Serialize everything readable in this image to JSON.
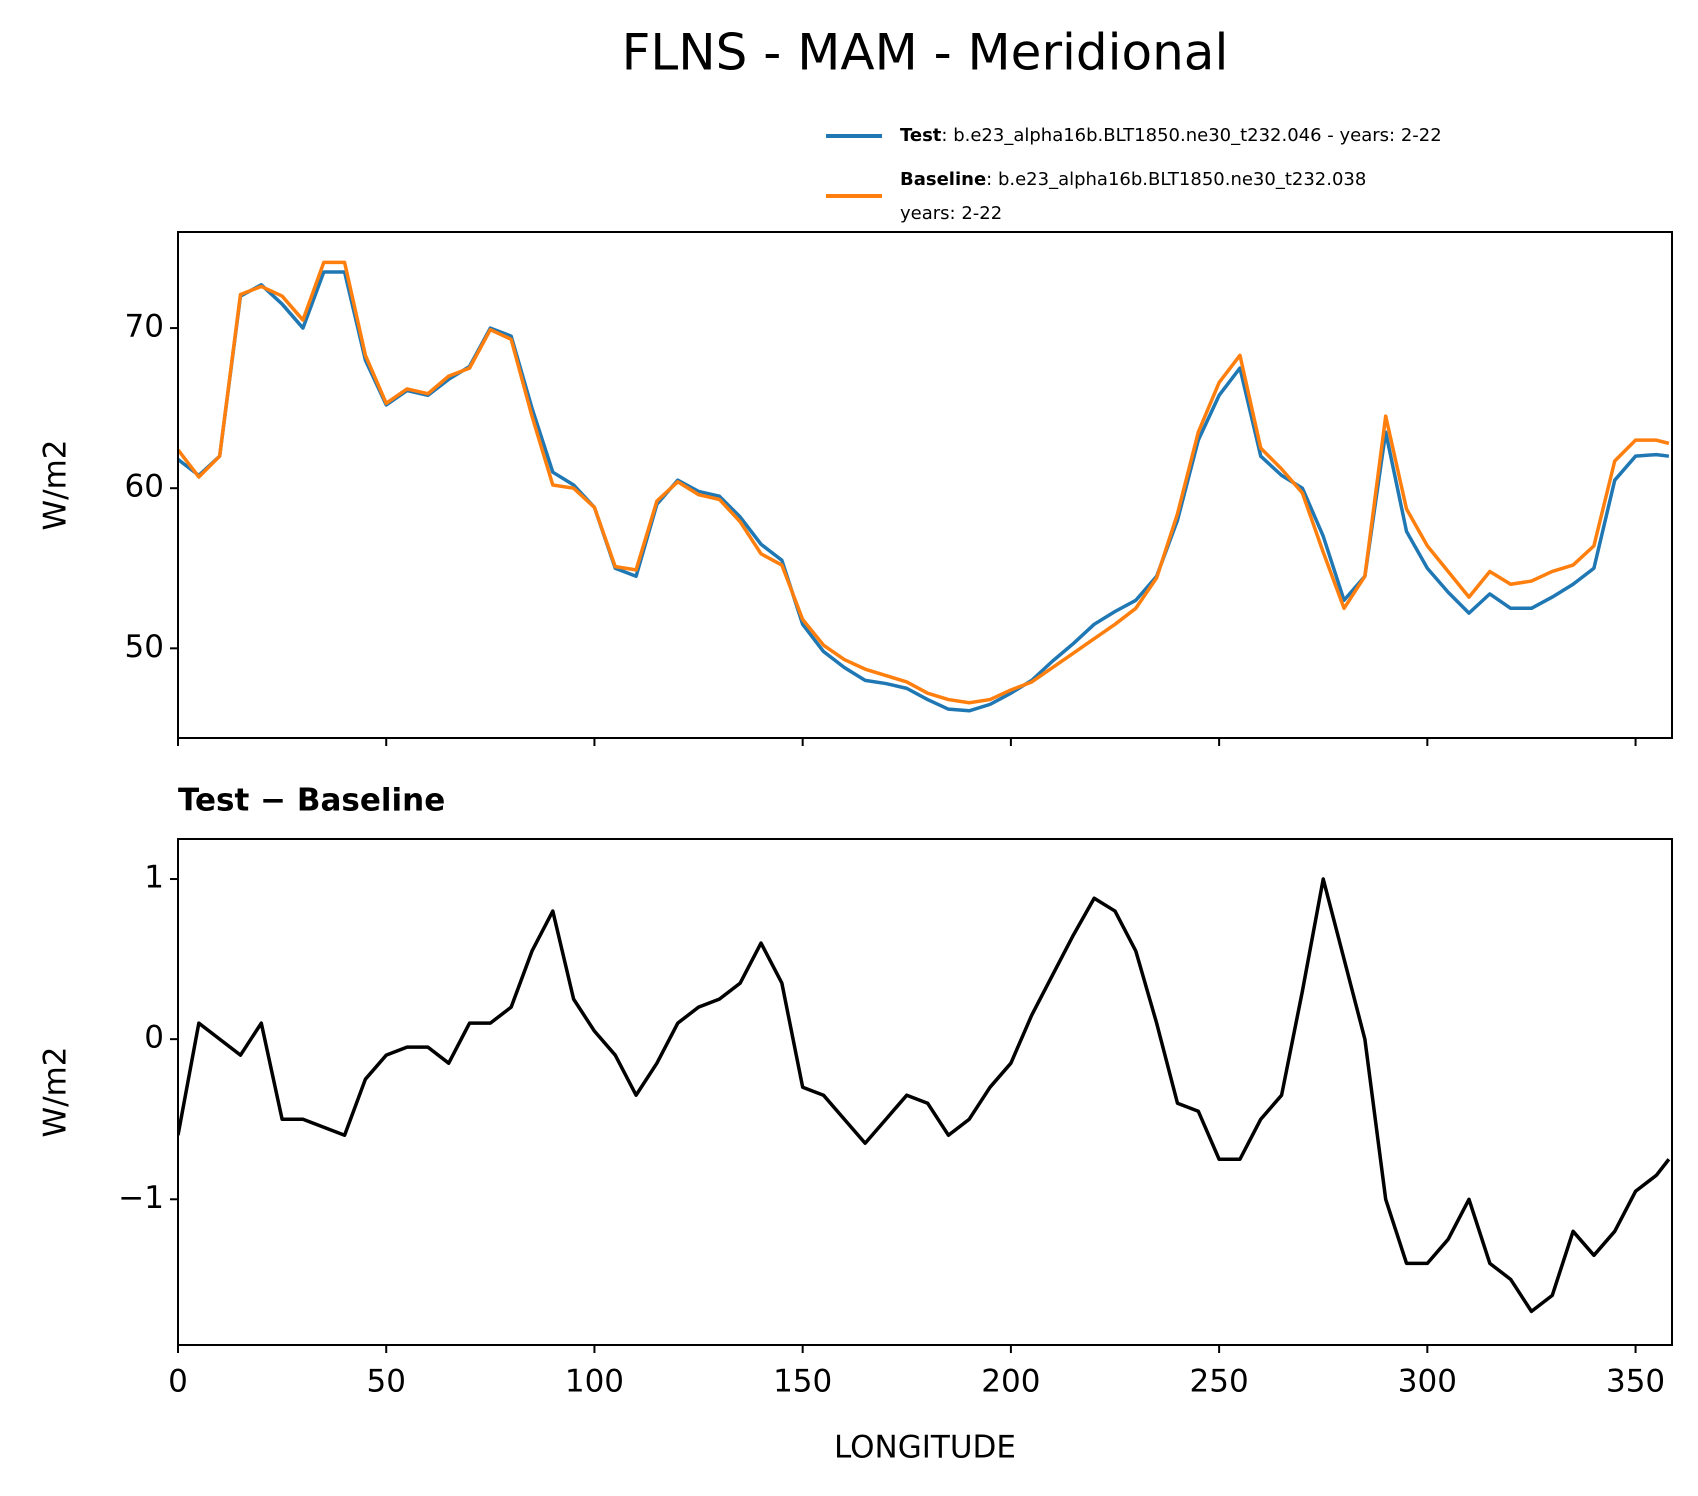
{
  "title": "FLNS - MAM - Meridional",
  "chart_data": [
    {
      "type": "line",
      "ylabel": "W/m2",
      "x": [
        0,
        5,
        10,
        15,
        20,
        25,
        30,
        35,
        40,
        45,
        50,
        55,
        60,
        65,
        70,
        75,
        80,
        85,
        90,
        95,
        100,
        105,
        110,
        115,
        120,
        125,
        130,
        135,
        140,
        145,
        150,
        155,
        160,
        165,
        170,
        175,
        180,
        185,
        190,
        195,
        200,
        205,
        210,
        215,
        220,
        225,
        230,
        235,
        240,
        245,
        250,
        255,
        260,
        265,
        270,
        275,
        280,
        285,
        290,
        295,
        300,
        305,
        310,
        315,
        320,
        325,
        330,
        335,
        340,
        345,
        350,
        355,
        358
      ],
      "series": [
        {
          "name": "Test",
          "description": [
            ": b.e23_alpha16b.BLT1850.ne30_t232.046 - years: 2-22"
          ],
          "color": "#1f77b4",
          "values": [
            61.8,
            60.8,
            62,
            72,
            72.7,
            71.5,
            70,
            73.5,
            73.5,
            68,
            65.2,
            66.1,
            65.8,
            66.8,
            67.6,
            70,
            69.5,
            65,
            61,
            60.2,
            58.8,
            55,
            54.5,
            59,
            60.5,
            59.8,
            59.5,
            58.2,
            56.5,
            55.5,
            51.5,
            49.8,
            48.8,
            48,
            47.8,
            47.5,
            46.8,
            46.2,
            46.1,
            46.5,
            47.2,
            48,
            49.2,
            50.3,
            51.5,
            52.3,
            53,
            54.5,
            58,
            63,
            65.8,
            67.5,
            62,
            60.8,
            60,
            57,
            53,
            54.5,
            63.5,
            57.3,
            55,
            53.5,
            52.2,
            53.4,
            52.5,
            52.5,
            53.2,
            54,
            55,
            60.5,
            62,
            62.1,
            62
          ]
        },
        {
          "name": "Baseline",
          "description": [
            ": b.e23_alpha16b.BLT1850.ne30_t232.038",
            "years: 2-22"
          ],
          "color": "#ff7f0e",
          "values": [
            62.4,
            60.7,
            62,
            72.1,
            72.6,
            72,
            70.5,
            74.1,
            74.1,
            68.3,
            65.3,
            66.2,
            65.9,
            67,
            67.5,
            69.9,
            69.3,
            64.5,
            60.2,
            60,
            58.8,
            55.1,
            54.9,
            59.2,
            60.4,
            59.6,
            59.3,
            57.9,
            55.9,
            55.2,
            51.8,
            50.2,
            49.3,
            48.7,
            48.3,
            47.9,
            47.2,
            46.8,
            46.6,
            46.8,
            47.4,
            47.9,
            48.8,
            49.7,
            50.6,
            51.5,
            52.5,
            54.4,
            58.4,
            63.5,
            66.6,
            68.3,
            62.5,
            61.2,
            59.7,
            56,
            52.5,
            54.5,
            64.5,
            58.7,
            56.4,
            54.8,
            53.2,
            54.8,
            54,
            54.2,
            54.8,
            55.2,
            56.4,
            61.7,
            63,
            63,
            62.8
          ]
        }
      ],
      "xlim": [
        0,
        358.75
      ],
      "xticks": [
        0,
        50,
        100,
        150,
        200,
        250,
        300,
        350
      ],
      "ylim": [
        44.4,
        76.0
      ],
      "yticks": [
        50,
        60,
        70
      ]
    },
    {
      "type": "line",
      "title": "Test − Baseline",
      "ylabel": "W/m2",
      "xlabel": "LONGITUDE",
      "x": [
        0,
        5,
        10,
        15,
        20,
        25,
        30,
        35,
        40,
        45,
        50,
        55,
        60,
        65,
        70,
        75,
        80,
        85,
        90,
        95,
        100,
        105,
        110,
        115,
        120,
        125,
        130,
        135,
        140,
        145,
        150,
        155,
        160,
        165,
        170,
        175,
        180,
        185,
        190,
        195,
        200,
        205,
        210,
        215,
        220,
        225,
        230,
        235,
        240,
        245,
        250,
        255,
        260,
        265,
        270,
        275,
        280,
        285,
        290,
        295,
        300,
        305,
        310,
        315,
        320,
        325,
        330,
        335,
        340,
        345,
        350,
        355,
        358
      ],
      "series": [
        {
          "color": "#000000",
          "values": [
            -0.6,
            0.1,
            0,
            -0.1,
            0.1,
            -0.5,
            -0.5,
            -0.55,
            -0.6,
            -0.25,
            -0.1,
            -0.05,
            -0.05,
            -0.15,
            0.1,
            0.1,
            0.2,
            0.55,
            0.8,
            0.25,
            0.05,
            -0.1,
            -0.35,
            -0.15,
            0.1,
            0.2,
            0.25,
            0.35,
            0.6,
            0.35,
            -0.3,
            -0.35,
            -0.5,
            -0.65,
            -0.5,
            -0.35,
            -0.4,
            -0.6,
            -0.5,
            -0.3,
            -0.15,
            0.15,
            0.4,
            0.65,
            0.88,
            0.8,
            0.55,
            0.1,
            -0.4,
            -0.45,
            -0.75,
            -0.75,
            -0.5,
            -0.35,
            0.3,
            1.0,
            0.5,
            0,
            -1.0,
            -1.4,
            -1.4,
            -1.25,
            -1.0,
            -1.4,
            -1.5,
            -1.7,
            -1.6,
            -1.2,
            -1.35,
            -1.2,
            -0.95,
            -0.85,
            -0.75
          ]
        }
      ],
      "xlim": [
        0,
        358.75
      ],
      "xticks": [
        0,
        50,
        100,
        150,
        200,
        250,
        300,
        350
      ],
      "ylim": [
        -1.91,
        1.25
      ],
      "yticks": [
        {
          "value": -1,
          "label": "−1"
        },
        0,
        1
      ]
    }
  ]
}
